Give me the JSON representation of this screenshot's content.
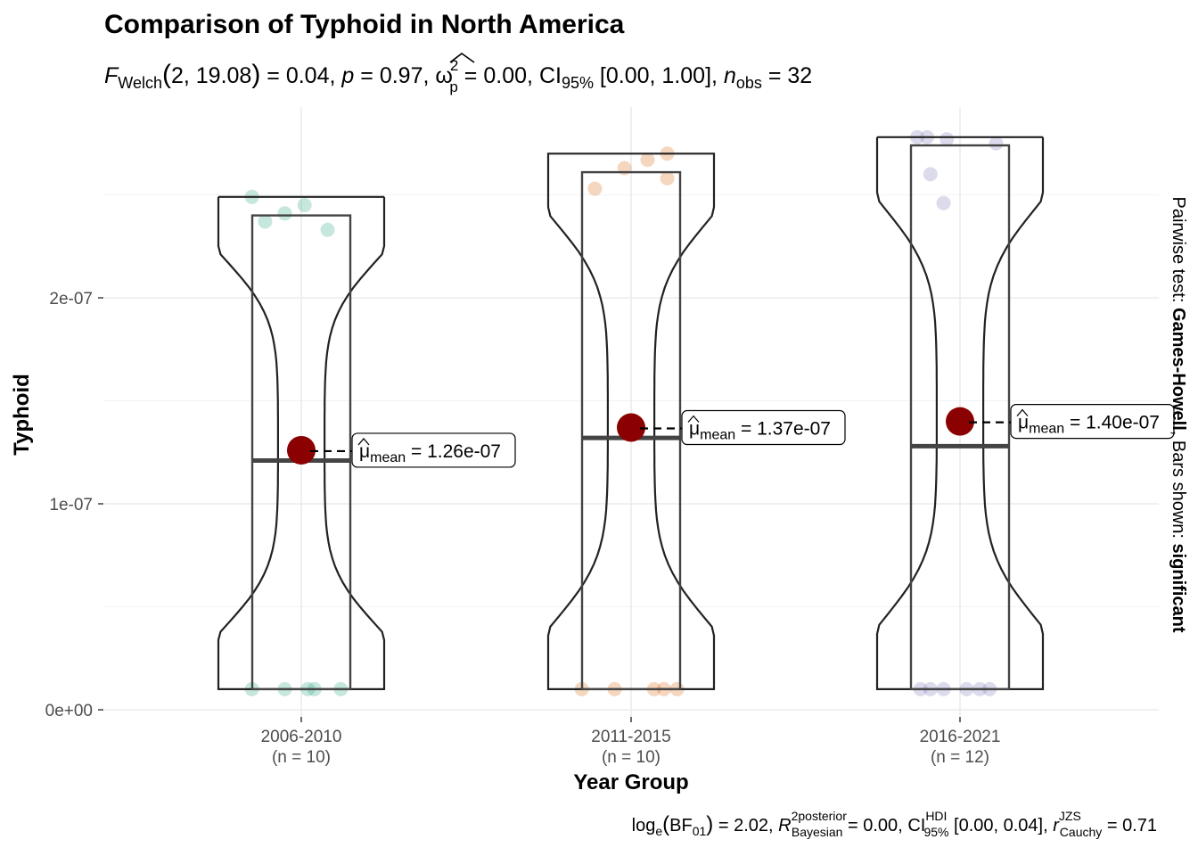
{
  "chart_data": {
    "type": "violin-box",
    "title": "Comparison of Typhoid in North America",
    "subtitle": {
      "stat_symbol": "F",
      "stat_sub": "Welch",
      "stat_args": "2, 19.08",
      "stat_value": "0.04",
      "p": "0.97",
      "effect_symbol": "ω",
      "effect_sup": "2",
      "effect_sub": "p",
      "effect_value": "0.00",
      "ci_label": "CI",
      "ci_sub": "95%",
      "ci": "[0.00, 1.00]",
      "n_label": "n",
      "n_sub": "obs",
      "n_obs": "32"
    },
    "xlabel": "Year Group",
    "ylabel": "Typhoid",
    "ylim": [
      0,
      2.9e-07
    ],
    "y_ticks": [
      {
        "value": 0,
        "label": "0e+00"
      },
      {
        "value": 1e-07,
        "label": "1e-07"
      },
      {
        "value": 2e-07,
        "label": "2e-07"
      }
    ],
    "right_label": {
      "prefix": "Pairwise test: ",
      "test": "Games-Howell",
      "middle": ", Bars shown: ",
      "shown": "significant"
    },
    "caption": {
      "bf_prefix": "log",
      "bf_sub_e": "e",
      "bf_label": "BF",
      "bf_sub": "01",
      "bf_value": "2.02",
      "r2_symbol": "R",
      "r2_sup": "2",
      "r2_sup_text": "posterior",
      "r2_sub": "Bayesian",
      "r2_value": "0.00",
      "hdi_label": "CI",
      "hdi_sup": "HDI",
      "hdi_sub": "95%",
      "hdi_ci": "[0.00, 0.04]",
      "r_symbol": "r",
      "r_sup": "JZS",
      "r_sub": "Cauchy",
      "r_value": "0.71"
    },
    "mean_symbol": "μ",
    "mean_sub": "mean",
    "groups": [
      {
        "category": "2006-2010",
        "n_label": "(n = 10)",
        "color": "#1b9e77",
        "mean": 1.26e-07,
        "mean_label": "1.26e-07",
        "median": 1.21e-07,
        "q1": 1e-08,
        "q3": 2.4e-07,
        "violin_min": 1e-08,
        "violin_max": 2.49e-07,
        "points": [
          {
            "dx": -0.15,
            "y": 2.49e-07
          },
          {
            "dx": -0.05,
            "y": 2.41e-07
          },
          {
            "dx": -0.11,
            "y": 2.37e-07
          },
          {
            "dx": 0.01,
            "y": 2.45e-07
          },
          {
            "dx": 0.08,
            "y": 2.33e-07
          },
          {
            "dx": -0.15,
            "y": 1e-08
          },
          {
            "dx": -0.05,
            "y": 1e-08
          },
          {
            "dx": 0.02,
            "y": 1e-08
          },
          {
            "dx": 0.04,
            "y": 1e-08
          },
          {
            "dx": 0.12,
            "y": 1e-08
          }
        ]
      },
      {
        "category": "2011-2015",
        "n_label": "(n = 10)",
        "color": "#d95f02",
        "mean": 1.37e-07,
        "mean_label": "1.37e-07",
        "median": 1.32e-07,
        "q1": 1e-08,
        "q3": 2.61e-07,
        "violin_min": 1e-08,
        "violin_max": 2.7e-07,
        "points": [
          {
            "dx": -0.11,
            "y": 2.53e-07
          },
          {
            "dx": -0.02,
            "y": 2.63e-07
          },
          {
            "dx": 0.05,
            "y": 2.67e-07
          },
          {
            "dx": 0.11,
            "y": 2.7e-07
          },
          {
            "dx": 0.11,
            "y": 2.58e-07
          },
          {
            "dx": -0.15,
            "y": 1e-08
          },
          {
            "dx": -0.05,
            "y": 1e-08
          },
          {
            "dx": 0.07,
            "y": 1e-08
          },
          {
            "dx": 0.1,
            "y": 1e-08
          },
          {
            "dx": 0.14,
            "y": 1e-08
          }
        ]
      },
      {
        "category": "2016-2021",
        "n_label": "(n = 12)",
        "color": "#7570b3",
        "mean": 1.4e-07,
        "mean_label": "1.40e-07",
        "median": 1.28e-07,
        "q1": 1e-08,
        "q3": 2.74e-07,
        "violin_min": 1e-08,
        "violin_max": 2.78e-07,
        "points": [
          {
            "dx": -0.13,
            "y": 2.78e-07
          },
          {
            "dx": -0.1,
            "y": 2.78e-07
          },
          {
            "dx": -0.04,
            "y": 2.77e-07
          },
          {
            "dx": 0.11,
            "y": 2.75e-07
          },
          {
            "dx": -0.09,
            "y": 2.6e-07
          },
          {
            "dx": -0.05,
            "y": 2.46e-07
          },
          {
            "dx": -0.12,
            "y": 1e-08
          },
          {
            "dx": -0.09,
            "y": 1e-08
          },
          {
            "dx": -0.05,
            "y": 1e-08
          },
          {
            "dx": 0.02,
            "y": 1e-08
          },
          {
            "dx": 0.06,
            "y": 1e-08
          },
          {
            "dx": 0.09,
            "y": 1e-08
          }
        ]
      }
    ]
  }
}
